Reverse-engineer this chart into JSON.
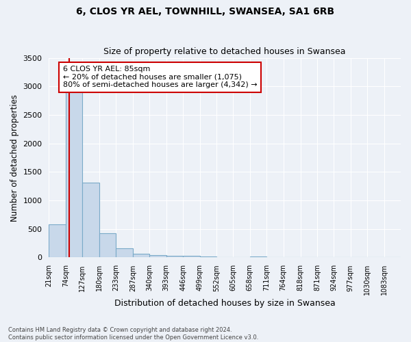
{
  "title": "6, CLOS YR AEL, TOWNHILL, SWANSEA, SA1 6RB",
  "subtitle": "Size of property relative to detached houses in Swansea",
  "xlabel": "Distribution of detached houses by size in Swansea",
  "ylabel": "Number of detached properties",
  "bin_labels": [
    "21sqm",
    "74sqm",
    "127sqm",
    "180sqm",
    "233sqm",
    "287sqm",
    "340sqm",
    "393sqm",
    "446sqm",
    "499sqm",
    "552sqm",
    "605sqm",
    "658sqm",
    "711sqm",
    "764sqm",
    "818sqm",
    "871sqm",
    "924sqm",
    "977sqm",
    "1030sqm",
    "1083sqm"
  ],
  "bar_heights": [
    580,
    2920,
    1310,
    420,
    165,
    70,
    45,
    30,
    25,
    20,
    0,
    0,
    15,
    0,
    0,
    0,
    0,
    0,
    0,
    0,
    0
  ],
  "bar_color": "#c8d8ea",
  "bar_edge_color": "#7aaac8",
  "property_line_x": 85,
  "property_line_color": "#cc0000",
  "annotation_line1": "6 CLOS YR AEL: 85sqm",
  "annotation_line2": "← 20% of detached houses are smaller (1,075)",
  "annotation_line3": "80% of semi-detached houses are larger (4,342) →",
  "annotation_box_color": "#cc0000",
  "ylim": [
    0,
    3500
  ],
  "yticks": [
    0,
    500,
    1000,
    1500,
    2000,
    2500,
    3000,
    3500
  ],
  "background_color": "#edf1f7",
  "plot_background_color": "#edf1f7",
  "grid_color": "#ffffff",
  "footer_line1": "Contains HM Land Registry data © Crown copyright and database right 2024.",
  "footer_line2": "Contains public sector information licensed under the Open Government Licence v3.0.",
  "bin_edges": [
    21,
    74,
    127,
    180,
    233,
    287,
    340,
    393,
    446,
    499,
    552,
    605,
    658,
    711,
    764,
    818,
    871,
    924,
    977,
    1030,
    1083,
    1136
  ]
}
